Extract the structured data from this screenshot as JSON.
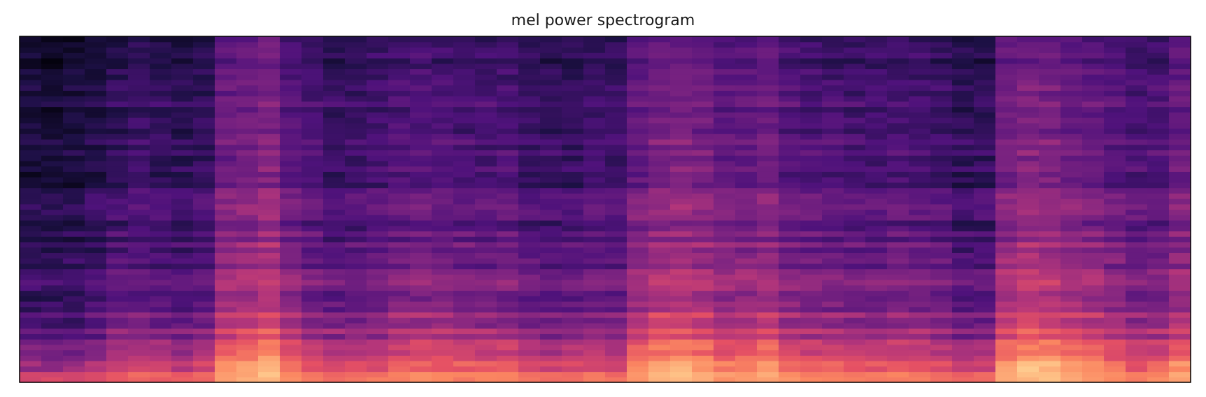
{
  "chart_data": {
    "type": "heatmap",
    "title": "mel power spectrogram",
    "xlabel": "",
    "ylabel": "",
    "axes_ticks": false,
    "colormap": "magma",
    "color_range": [
      0,
      1
    ],
    "num_time_frames": 54,
    "num_mel_bands": 64,
    "bands_order": "low-to-high (bottom row = lowest mel band)",
    "frame_loudness": [
      0.1,
      0.08,
      0.1,
      0.16,
      0.25,
      0.3,
      0.26,
      0.22,
      0.28,
      0.58,
      0.62,
      0.7,
      0.48,
      0.38,
      0.3,
      0.32,
      0.36,
      0.42,
      0.45,
      0.42,
      0.4,
      0.38,
      0.4,
      0.32,
      0.28,
      0.3,
      0.34,
      0.32,
      0.55,
      0.65,
      0.68,
      0.62,
      0.52,
      0.54,
      0.6,
      0.46,
      0.42,
      0.4,
      0.38,
      0.36,
      0.4,
      0.38,
      0.35,
      0.24,
      0.26,
      0.62,
      0.7,
      0.68,
      0.6,
      0.55,
      0.48,
      0.4,
      0.42,
      0.56
    ],
    "band_profile": [
      0.98,
      0.92,
      0.86,
      0.8,
      0.74,
      0.7,
      0.66,
      0.63,
      0.6,
      0.57,
      0.54,
      0.52,
      0.5,
      0.48,
      0.47,
      0.46,
      0.45,
      0.44,
      0.43,
      0.42,
      0.41,
      0.4,
      0.39,
      0.38,
      0.37,
      0.36,
      0.35,
      0.34,
      0.34,
      0.33,
      0.32,
      0.32,
      0.31,
      0.3,
      0.3,
      0.29,
      0.29,
      0.28,
      0.28,
      0.27,
      0.27,
      0.26,
      0.26,
      0.26,
      0.25,
      0.25,
      0.25,
      0.25,
      0.24,
      0.24,
      0.24,
      0.24,
      0.23,
      0.23,
      0.23,
      0.23,
      0.22,
      0.22,
      0.22,
      0.22,
      0.21,
      0.21,
      0.2,
      0.2
    ]
  }
}
